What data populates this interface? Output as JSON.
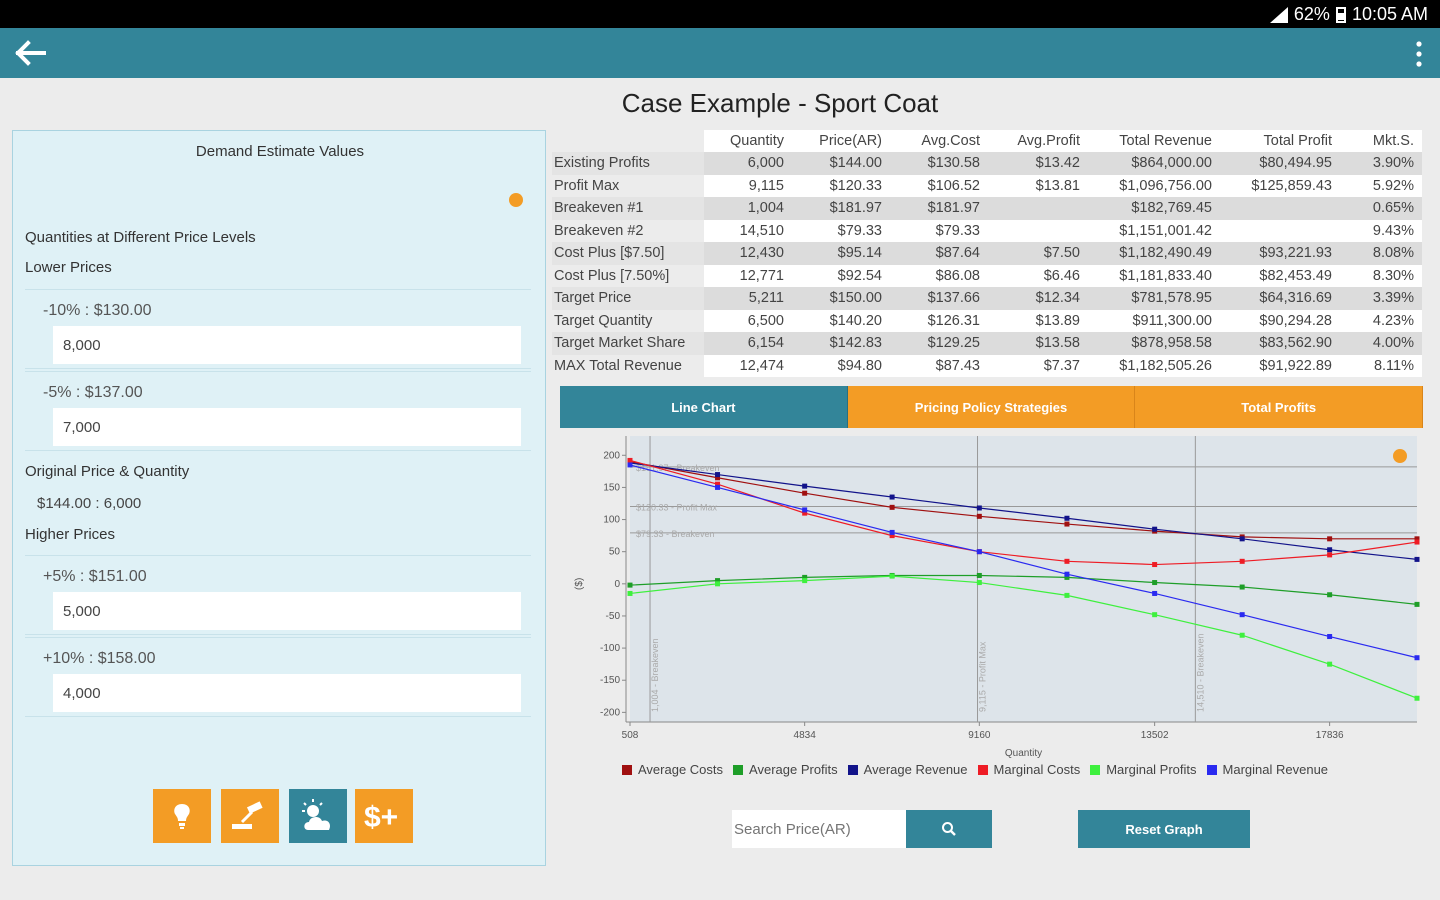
{
  "status": {
    "battery": "62%",
    "time": "10:05 AM"
  },
  "page_title": "Case Example - Sport Coat",
  "left_panel": {
    "title": "Demand Estimate Values",
    "quantities_heading": "Quantities at Different Price Levels",
    "lower_heading": "Lower Prices",
    "lower": [
      {
        "label": "-10% : $130.00",
        "value": "8,000"
      },
      {
        "label": "-5% : $137.00",
        "value": "7,000"
      }
    ],
    "original_heading": "Original Price & Quantity",
    "original_value": "$144.00 : 6,000",
    "higher_heading": "Higher Prices",
    "higher": [
      {
        "label": "+5% : $151.00",
        "value": "5,000"
      },
      {
        "label": "+10% : $158.00",
        "value": "4,000"
      }
    ]
  },
  "table": {
    "headers": [
      "",
      "Quantity",
      "Price(AR)",
      "Avg.Cost",
      "Avg.Profit",
      "Total Revenue",
      "Total Profit",
      "Mkt.S."
    ],
    "rows": [
      [
        "Existing Profits",
        "6,000",
        "$144.00",
        "$130.58",
        "$13.42",
        "$864,000.00",
        "$80,494.95",
        "3.90%"
      ],
      [
        "Profit Max",
        "9,115",
        "$120.33",
        "$106.52",
        "$13.81",
        "$1,096,756.00",
        "$125,859.43",
        "5.92%"
      ],
      [
        "Breakeven #1",
        "1,004",
        "$181.97",
        "$181.97",
        "",
        "$182,769.45",
        "",
        "0.65%"
      ],
      [
        "Breakeven #2",
        "14,510",
        "$79.33",
        "$79.33",
        "",
        "$1,151,001.42",
        "",
        "9.43%"
      ],
      [
        "Cost Plus [$7.50]",
        "12,430",
        "$95.14",
        "$87.64",
        "$7.50",
        "$1,182,490.49",
        "$93,221.93",
        "8.08%"
      ],
      [
        "Cost Plus [7.50%]",
        "12,771",
        "$92.54",
        "$86.08",
        "$6.46",
        "$1,181,833.40",
        "$82,453.49",
        "8.30%"
      ],
      [
        "Target Price",
        "5,211",
        "$150.00",
        "$137.66",
        "$12.34",
        "$781,578.95",
        "$64,316.69",
        "3.39%"
      ],
      [
        "Target Quantity",
        "6,500",
        "$140.20",
        "$126.31",
        "$13.89",
        "$911,300.00",
        "$90,294.28",
        "4.23%"
      ],
      [
        "Target Market Share",
        "6,154",
        "$142.83",
        "$129.25",
        "$13.58",
        "$878,958.58",
        "$83,562.90",
        "4.00%"
      ],
      [
        "MAX Total Revenue",
        "12,474",
        "$94.80",
        "$87.43",
        "$7.37",
        "$1,182,505.26",
        "$91,922.89",
        "8.11%"
      ]
    ]
  },
  "tabs": [
    "Line Chart",
    "Pricing Policy Strategies",
    "Total Profits"
  ],
  "search": {
    "placeholder": "Search Price(AR)"
  },
  "reset_label": "Reset Graph",
  "chart_data": {
    "type": "line",
    "xlabel": "Quantity",
    "ylabel": "($)",
    "x_ticks": [
      508,
      4834,
      9160,
      13502,
      17836
    ],
    "y_ticks": [
      200,
      150,
      100,
      50,
      0,
      -50,
      -100,
      -150,
      -200
    ],
    "xlim": [
      508,
      20000
    ],
    "ylim": [
      -215,
      230
    ],
    "ref_lines_h": [
      {
        "y": 181.97,
        "label": "$181.97 - Breakeven"
      },
      {
        "y": 120.33,
        "label": "$120.33 - Profit Max"
      },
      {
        "y": 79.33,
        "label": "$79.33 - Breakeven"
      }
    ],
    "ref_lines_v": [
      {
        "x": 1004,
        "label": "1,004 - Breakeven"
      },
      {
        "x": 9115,
        "label": "9,115 - Profit Max"
      },
      {
        "x": 14510,
        "label": "14,510 - Breakeven"
      }
    ],
    "x": [
      508,
      2676,
      4834,
      7000,
      9160,
      11330,
      13502,
      15670,
      17836,
      20000
    ],
    "series": [
      {
        "name": "Average Costs",
        "color": "#a01010",
        "values": [
          190,
          165,
          141,
          119,
          105,
          93,
          82,
          73,
          70,
          70
        ]
      },
      {
        "name": "Average Profits",
        "color": "#1e9e28",
        "values": [
          -2,
          5,
          10,
          13,
          13,
          10,
          2,
          -5,
          -17,
          -32
        ]
      },
      {
        "name": "Average Revenue",
        "color": "#12138a",
        "values": [
          188,
          170,
          152,
          135,
          118,
          102,
          85,
          70,
          53,
          38
        ]
      },
      {
        "name": "Marginal Costs",
        "color": "#ee1c25",
        "values": [
          192,
          155,
          110,
          75,
          50,
          35,
          30,
          35,
          45,
          65
        ]
      },
      {
        "name": "Marginal Profits",
        "color": "#3ef03e",
        "values": [
          -15,
          0,
          5,
          12,
          2,
          -18,
          -48,
          -80,
          -125,
          -178
        ]
      },
      {
        "name": "Marginal Revenue",
        "color": "#2a2af0",
        "values": [
          185,
          150,
          115,
          80,
          50,
          15,
          -15,
          -48,
          -82,
          -115
        ]
      }
    ]
  },
  "colors": {
    "accent": "#338599",
    "orange": "#f39c25",
    "panel": "#dff1f6"
  }
}
